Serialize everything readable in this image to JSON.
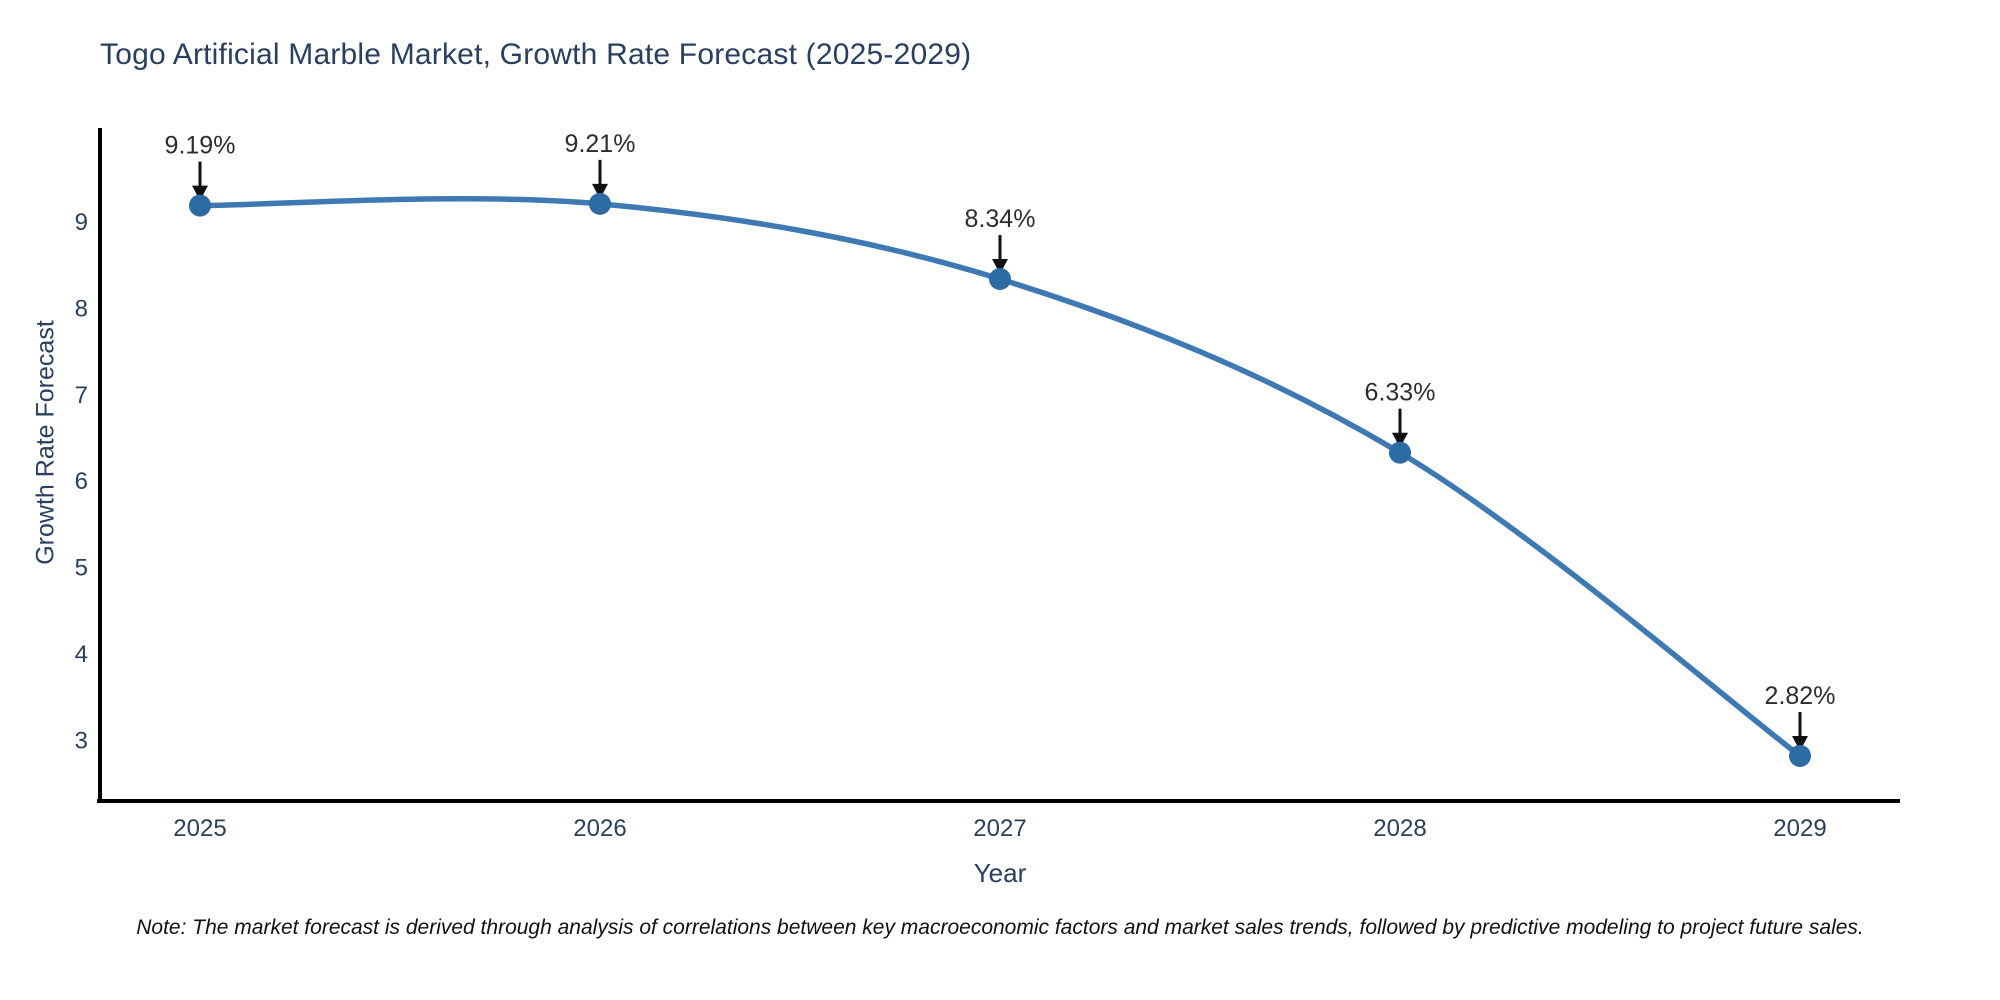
{
  "title": "Togo Artificial Marble Market, Growth Rate Forecast (2025-2029)",
  "note": "Note: The market forecast is derived through analysis of correlations between key macroeconomic factors and market sales trends, followed by predictive modeling to project future sales.",
  "colors": {
    "line": "#3e79b4",
    "marker": "#2d6ba5",
    "axis": "#000000",
    "title_text": "#2a3f5f",
    "tick_text": "#2a3f5f",
    "annotation_text": "#2d2d2d",
    "arrow": "#111111",
    "background": "#ffffff"
  },
  "chart_data": {
    "type": "line",
    "title": "Togo Artificial Marble Market, Growth Rate Forecast (2025-2029)",
    "xlabel": "Year",
    "ylabel": "Growth Rate Forecast",
    "categories": [
      "2025",
      "2026",
      "2027",
      "2028",
      "2029"
    ],
    "series": [
      {
        "name": "Growth Rate Forecast",
        "values": [
          9.19,
          9.21,
          8.34,
          6.33,
          2.82
        ]
      }
    ],
    "point_labels": [
      "9.19%",
      "9.21%",
      "8.34%",
      "6.33%",
      "2.82%"
    ],
    "y_ticks": [
      3,
      4,
      5,
      6,
      7,
      8,
      9
    ],
    "ylim": [
      2.3,
      10.1
    ],
    "grid": false,
    "legend_visible": false,
    "line_shape": "spline",
    "marker_style": "circle",
    "annotation_style": "label-with-down-arrow"
  }
}
